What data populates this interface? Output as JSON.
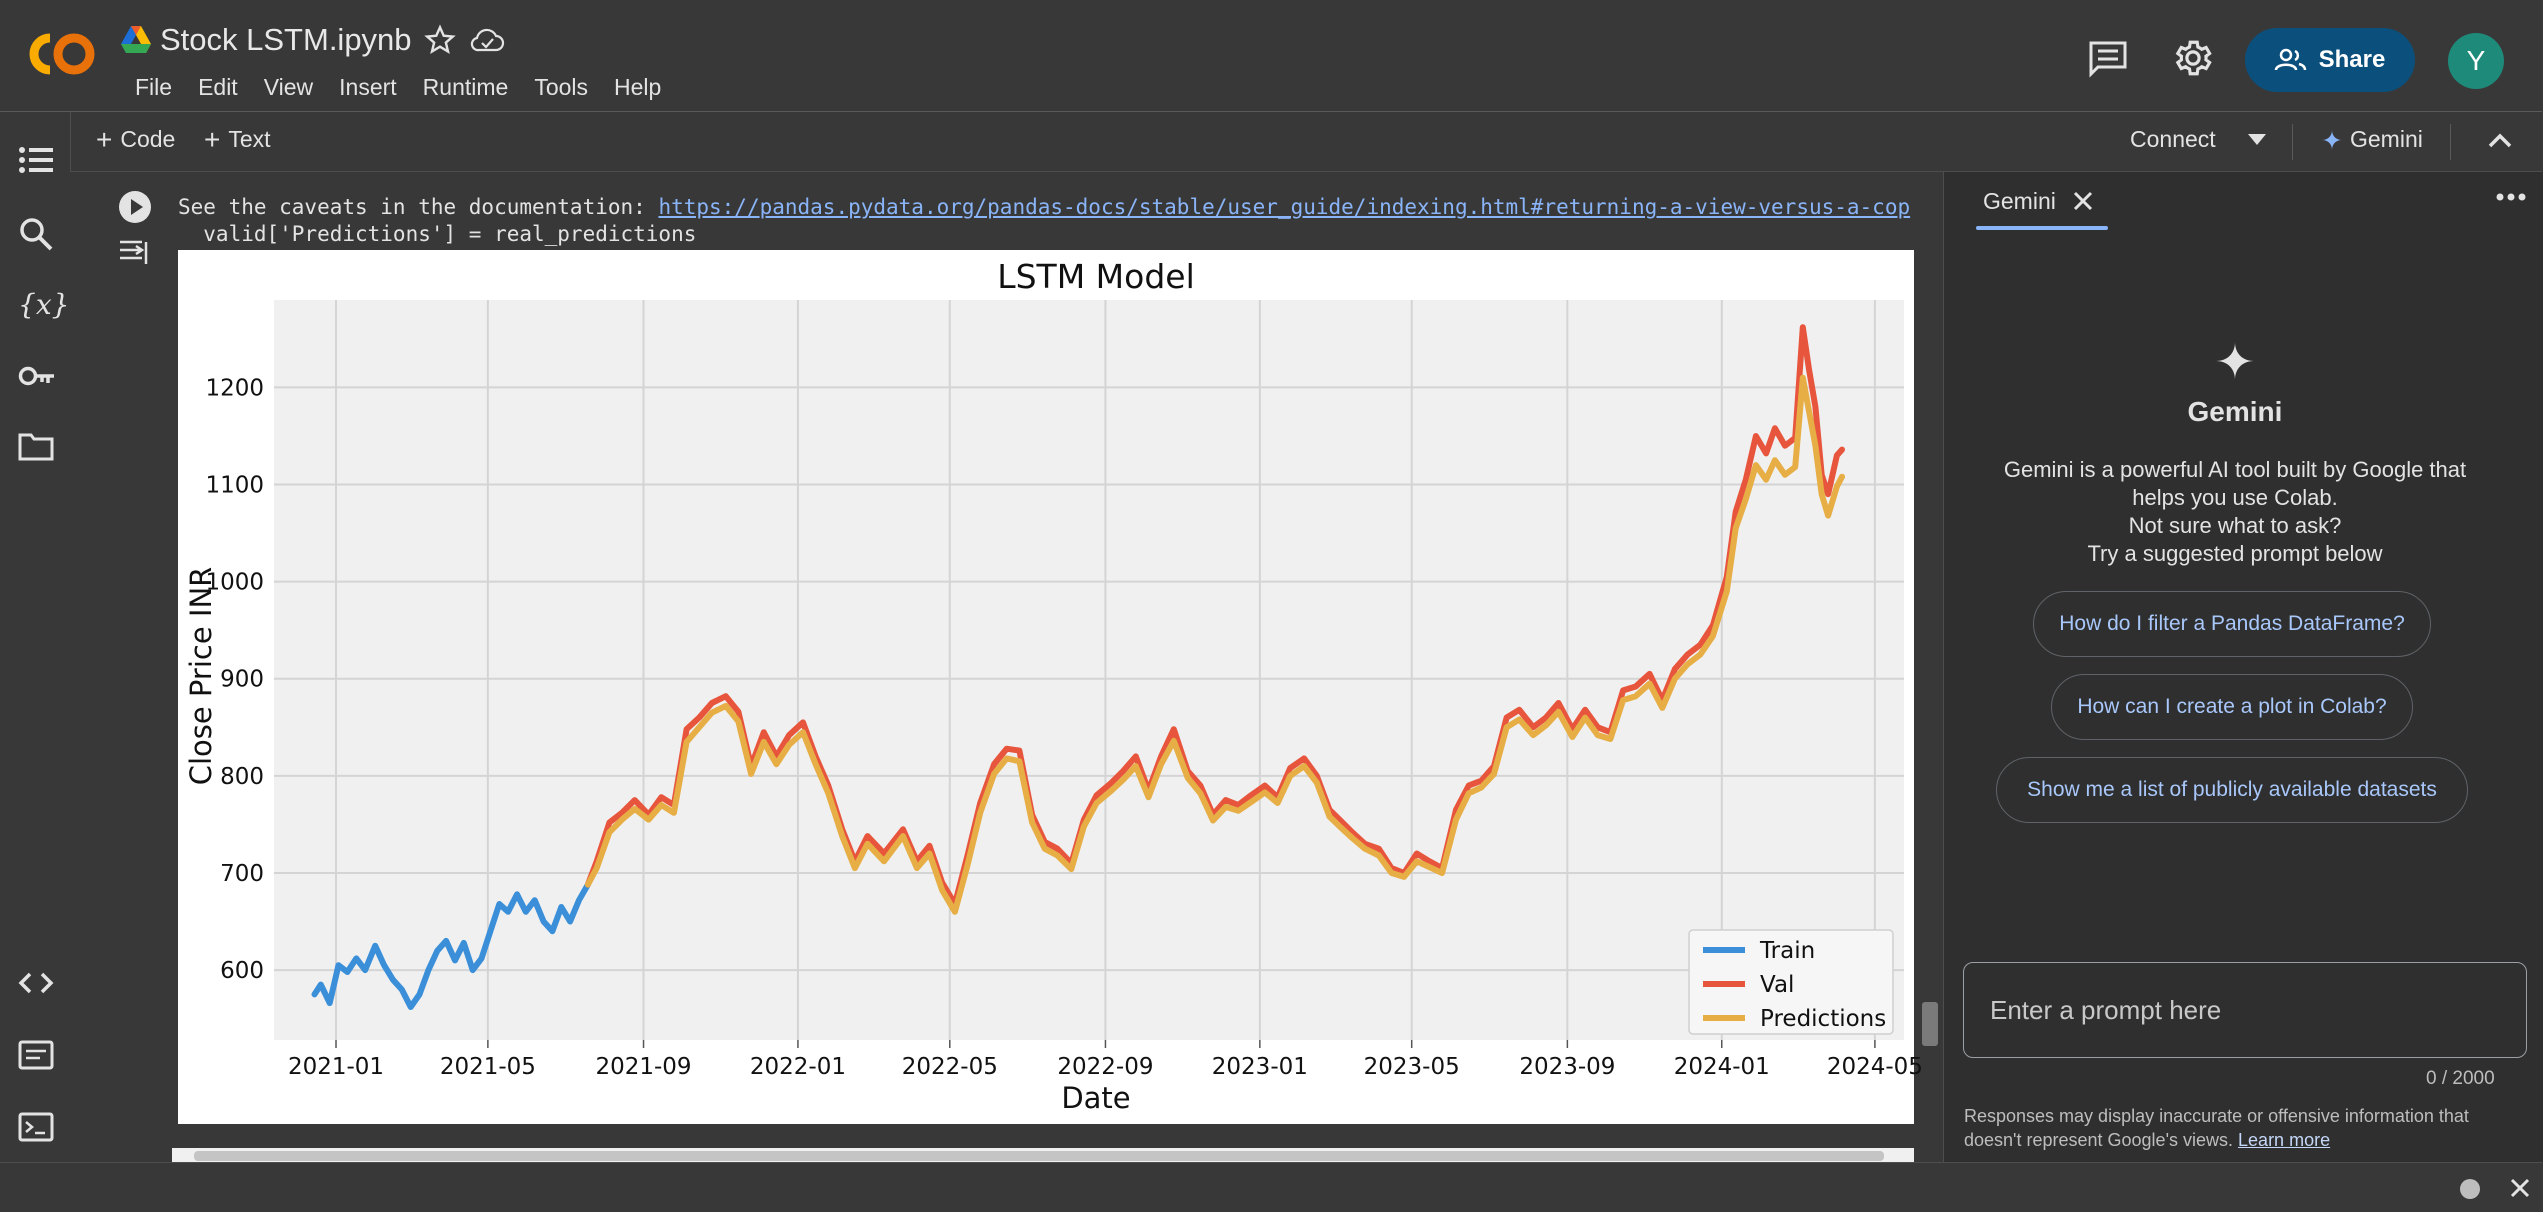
{
  "header": {
    "title": "Stock LSTM.ipynb",
    "menu": [
      "File",
      "Edit",
      "View",
      "Insert",
      "Runtime",
      "Tools",
      "Help"
    ],
    "share_label": "Share",
    "avatar_letter": "Y"
  },
  "toolbar": {
    "code_label": "Code",
    "text_label": "Text",
    "connect_label": "Connect",
    "gemini_label": "Gemini"
  },
  "output": {
    "line1_prefix": "See the caveats in the documentation: ",
    "line1_link": "https://pandas.pydata.org/pandas-docs/stable/user_guide/indexing.html#returning-a-view-versus-a-cop",
    "line2": "  valid['Predictions'] = real_predictions"
  },
  "gemini": {
    "tab_label": "Gemini",
    "heading": "Gemini",
    "description": [
      "Gemini is a powerful AI tool built by Google that",
      "helps you use Colab.",
      "Not sure what to ask?",
      "Try a suggested prompt below"
    ],
    "suggestions": [
      "How do I filter a Pandas DataFrame?",
      "How can I create a plot in Colab?",
      "Show me a list of publicly available datasets"
    ],
    "prompt_placeholder": "Enter a prompt here",
    "char_count": "0 / 2000",
    "disclaimer_text": "Responses may display inaccurate or offensive information that doesn't represent Google's views.",
    "learn_more": "Learn more"
  },
  "colors": {
    "train": "#3b8fd9",
    "val": "#e8553d",
    "predictions": "#e6ae45",
    "share_bg": "#0b4f7c",
    "link": "#8ab4f8"
  },
  "chart_data": {
    "type": "line",
    "title": "LSTM Model",
    "xlabel": "Date",
    "ylabel": "Close Price INR",
    "x_ticks": [
      "2021-01",
      "2021-05",
      "2021-09",
      "2022-01",
      "2022-05",
      "2022-09",
      "2023-01",
      "2023-05",
      "2023-09",
      "2024-01",
      "2024-05"
    ],
    "y_ticks": [
      600,
      700,
      800,
      900,
      1000,
      1100,
      1200
    ],
    "xlim": [
      "2020-11-13",
      "2024-05-24"
    ],
    "ylim": [
      528,
      1290
    ],
    "grid": true,
    "legend": "bottom-right",
    "series": [
      {
        "name": "Train",
        "color": "#3b8fd9",
        "points": [
          [
            "2020-12-15",
            575
          ],
          [
            "2020-12-20",
            585
          ],
          [
            "2020-12-27",
            566
          ],
          [
            "2021-01-03",
            605
          ],
          [
            "2021-01-10",
            598
          ],
          [
            "2021-01-17",
            612
          ],
          [
            "2021-01-24",
            600
          ],
          [
            "2021-02-01",
            625
          ],
          [
            "2021-02-08",
            605
          ],
          [
            "2021-02-15",
            590
          ],
          [
            "2021-02-22",
            580
          ],
          [
            "2021-03-01",
            562
          ],
          [
            "2021-03-08",
            575
          ],
          [
            "2021-03-15",
            600
          ],
          [
            "2021-03-22",
            620
          ],
          [
            "2021-03-29",
            630
          ],
          [
            "2021-04-05",
            610
          ],
          [
            "2021-04-12",
            628
          ],
          [
            "2021-04-19",
            600
          ],
          [
            "2021-04-26",
            612
          ],
          [
            "2021-05-03",
            640
          ],
          [
            "2021-05-10",
            668
          ],
          [
            "2021-05-17",
            660
          ],
          [
            "2021-05-24",
            678
          ],
          [
            "2021-05-31",
            660
          ],
          [
            "2021-06-07",
            672
          ],
          [
            "2021-06-14",
            650
          ],
          [
            "2021-06-21",
            640
          ],
          [
            "2021-06-28",
            665
          ],
          [
            "2021-07-05",
            650
          ],
          [
            "2021-07-12",
            672
          ],
          [
            "2021-07-19",
            688
          ]
        ]
      },
      {
        "name": "Val",
        "color": "#e8553d",
        "points": [
          [
            "2021-07-19",
            688
          ],
          [
            "2021-07-26",
            712
          ],
          [
            "2021-08-05",
            752
          ],
          [
            "2021-08-15",
            762
          ],
          [
            "2021-08-25",
            775
          ],
          [
            "2021-09-05",
            760
          ],
          [
            "2021-09-15",
            778
          ],
          [
            "2021-09-25",
            770
          ],
          [
            "2021-10-05",
            848
          ],
          [
            "2021-10-15",
            860
          ],
          [
            "2021-10-25",
            875
          ],
          [
            "2021-11-05",
            882
          ],
          [
            "2021-11-15",
            866
          ],
          [
            "2021-11-25",
            810
          ],
          [
            "2021-12-05",
            845
          ],
          [
            "2021-12-15",
            820
          ],
          [
            "2021-12-25",
            842
          ],
          [
            "2022-01-05",
            855
          ],
          [
            "2022-01-15",
            820
          ],
          [
            "2022-01-25",
            790
          ],
          [
            "2022-02-05",
            745
          ],
          [
            "2022-02-15",
            712
          ],
          [
            "2022-02-25",
            738
          ],
          [
            "2022-03-10",
            720
          ],
          [
            "2022-03-25",
            745
          ],
          [
            "2022-04-05",
            712
          ],
          [
            "2022-04-15",
            728
          ],
          [
            "2022-04-25",
            690
          ],
          [
            "2022-05-05",
            668
          ],
          [
            "2022-05-15",
            718
          ],
          [
            "2022-05-25",
            772
          ],
          [
            "2022-06-05",
            812
          ],
          [
            "2022-06-15",
            828
          ],
          [
            "2022-06-25",
            826
          ],
          [
            "2022-07-05",
            760
          ],
          [
            "2022-07-15",
            732
          ],
          [
            "2022-07-25",
            725
          ],
          [
            "2022-08-05",
            710
          ],
          [
            "2022-08-15",
            755
          ],
          [
            "2022-08-25",
            780
          ],
          [
            "2022-09-05",
            792
          ],
          [
            "2022-09-15",
            805
          ],
          [
            "2022-09-25",
            820
          ],
          [
            "2022-10-05",
            785
          ],
          [
            "2022-10-15",
            820
          ],
          [
            "2022-10-25",
            848
          ],
          [
            "2022-11-05",
            805
          ],
          [
            "2022-11-15",
            790
          ],
          [
            "2022-11-25",
            760
          ],
          [
            "2022-12-05",
            775
          ],
          [
            "2022-12-15",
            770
          ],
          [
            "2022-12-25",
            780
          ],
          [
            "2023-01-05",
            790
          ],
          [
            "2023-01-15",
            778
          ],
          [
            "2023-01-25",
            808
          ],
          [
            "2023-02-05",
            818
          ],
          [
            "2023-02-15",
            800
          ],
          [
            "2023-02-25",
            765
          ],
          [
            "2023-03-05",
            755
          ],
          [
            "2023-03-15",
            742
          ],
          [
            "2023-03-25",
            730
          ],
          [
            "2023-04-05",
            725
          ],
          [
            "2023-04-15",
            705
          ],
          [
            "2023-04-25",
            700
          ],
          [
            "2023-05-05",
            720
          ],
          [
            "2023-05-15",
            712
          ],
          [
            "2023-05-25",
            705
          ],
          [
            "2023-06-05",
            765
          ],
          [
            "2023-06-15",
            790
          ],
          [
            "2023-06-25",
            795
          ],
          [
            "2023-07-05",
            810
          ],
          [
            "2023-07-15",
            860
          ],
          [
            "2023-07-25",
            868
          ],
          [
            "2023-08-05",
            850
          ],
          [
            "2023-08-15",
            860
          ],
          [
            "2023-08-25",
            875
          ],
          [
            "2023-09-05",
            848
          ],
          [
            "2023-09-15",
            868
          ],
          [
            "2023-09-25",
            850
          ],
          [
            "2023-10-05",
            845
          ],
          [
            "2023-10-15",
            888
          ],
          [
            "2023-10-25",
            892
          ],
          [
            "2023-11-05",
            905
          ],
          [
            "2023-11-15",
            878
          ],
          [
            "2023-11-25",
            910
          ],
          [
            "2023-12-05",
            925
          ],
          [
            "2023-12-15",
            935
          ],
          [
            "2023-12-25",
            955
          ],
          [
            "2024-01-05",
            1005
          ],
          [
            "2024-01-12",
            1072
          ],
          [
            "2024-01-20",
            1105
          ],
          [
            "2024-01-28",
            1150
          ],
          [
            "2024-02-05",
            1132
          ],
          [
            "2024-02-12",
            1158
          ],
          [
            "2024-02-20",
            1140
          ],
          [
            "2024-02-28",
            1148
          ],
          [
            "2024-03-05",
            1262
          ],
          [
            "2024-03-10",
            1218
          ],
          [
            "2024-03-15",
            1180
          ],
          [
            "2024-03-20",
            1110
          ],
          [
            "2024-03-25",
            1090
          ],
          [
            "2024-04-01",
            1130
          ],
          [
            "2024-04-05",
            1136
          ]
        ]
      },
      {
        "name": "Predictions",
        "color": "#e6ae45",
        "points": [
          [
            "2021-07-19",
            688
          ],
          [
            "2021-07-26",
            705
          ],
          [
            "2021-08-05",
            742
          ],
          [
            "2021-08-15",
            755
          ],
          [
            "2021-08-25",
            766
          ],
          [
            "2021-09-05",
            755
          ],
          [
            "2021-09-15",
            770
          ],
          [
            "2021-09-25",
            762
          ],
          [
            "2021-10-05",
            835
          ],
          [
            "2021-10-15",
            850
          ],
          [
            "2021-10-25",
            865
          ],
          [
            "2021-11-05",
            872
          ],
          [
            "2021-11-15",
            856
          ],
          [
            "2021-11-25",
            802
          ],
          [
            "2021-12-05",
            835
          ],
          [
            "2021-12-15",
            812
          ],
          [
            "2021-12-25",
            832
          ],
          [
            "2022-01-05",
            845
          ],
          [
            "2022-01-15",
            812
          ],
          [
            "2022-01-25",
            782
          ],
          [
            "2022-02-05",
            738
          ],
          [
            "2022-02-15",
            705
          ],
          [
            "2022-02-25",
            730
          ],
          [
            "2022-03-10",
            712
          ],
          [
            "2022-03-25",
            738
          ],
          [
            "2022-04-05",
            705
          ],
          [
            "2022-04-15",
            720
          ],
          [
            "2022-04-25",
            682
          ],
          [
            "2022-05-05",
            660
          ],
          [
            "2022-05-15",
            708
          ],
          [
            "2022-05-25",
            762
          ],
          [
            "2022-06-05",
            802
          ],
          [
            "2022-06-15",
            818
          ],
          [
            "2022-06-25",
            815
          ],
          [
            "2022-07-05",
            752
          ],
          [
            "2022-07-15",
            725
          ],
          [
            "2022-07-25",
            718
          ],
          [
            "2022-08-05",
            704
          ],
          [
            "2022-08-15",
            748
          ],
          [
            "2022-08-25",
            772
          ],
          [
            "2022-09-05",
            784
          ],
          [
            "2022-09-15",
            796
          ],
          [
            "2022-09-25",
            810
          ],
          [
            "2022-10-05",
            778
          ],
          [
            "2022-10-15",
            812
          ],
          [
            "2022-10-25",
            836
          ],
          [
            "2022-11-05",
            798
          ],
          [
            "2022-11-15",
            782
          ],
          [
            "2022-11-25",
            754
          ],
          [
            "2022-12-05",
            768
          ],
          [
            "2022-12-15",
            764
          ],
          [
            "2022-12-25",
            773
          ],
          [
            "2023-01-05",
            783
          ],
          [
            "2023-01-15",
            772
          ],
          [
            "2023-01-25",
            800
          ],
          [
            "2023-02-05",
            810
          ],
          [
            "2023-02-15",
            793
          ],
          [
            "2023-02-25",
            758
          ],
          [
            "2023-03-05",
            748
          ],
          [
            "2023-03-15",
            736
          ],
          [
            "2023-03-25",
            725
          ],
          [
            "2023-04-05",
            718
          ],
          [
            "2023-04-15",
            700
          ],
          [
            "2023-04-25",
            696
          ],
          [
            "2023-05-05",
            712
          ],
          [
            "2023-05-15",
            706
          ],
          [
            "2023-05-25",
            700
          ],
          [
            "2023-06-05",
            755
          ],
          [
            "2023-06-15",
            782
          ],
          [
            "2023-06-25",
            788
          ],
          [
            "2023-07-05",
            802
          ],
          [
            "2023-07-15",
            850
          ],
          [
            "2023-07-25",
            858
          ],
          [
            "2023-08-05",
            842
          ],
          [
            "2023-08-15",
            852
          ],
          [
            "2023-08-25",
            866
          ],
          [
            "2023-09-05",
            840
          ],
          [
            "2023-09-15",
            860
          ],
          [
            "2023-09-25",
            842
          ],
          [
            "2023-10-05",
            838
          ],
          [
            "2023-10-15",
            878
          ],
          [
            "2023-10-25",
            882
          ],
          [
            "2023-11-05",
            895
          ],
          [
            "2023-11-15",
            870
          ],
          [
            "2023-11-25",
            900
          ],
          [
            "2023-12-05",
            915
          ],
          [
            "2023-12-15",
            925
          ],
          [
            "2023-12-25",
            944
          ],
          [
            "2024-01-05",
            990
          ],
          [
            "2024-01-12",
            1055
          ],
          [
            "2024-01-20",
            1085
          ],
          [
            "2024-01-28",
            1120
          ],
          [
            "2024-02-05",
            1105
          ],
          [
            "2024-02-12",
            1125
          ],
          [
            "2024-02-20",
            1110
          ],
          [
            "2024-02-28",
            1118
          ],
          [
            "2024-03-05",
            1210
          ],
          [
            "2024-03-10",
            1175
          ],
          [
            "2024-03-15",
            1140
          ],
          [
            "2024-03-20",
            1090
          ],
          [
            "2024-03-25",
            1068
          ],
          [
            "2024-04-01",
            1098
          ],
          [
            "2024-04-05",
            1108
          ]
        ]
      }
    ]
  }
}
